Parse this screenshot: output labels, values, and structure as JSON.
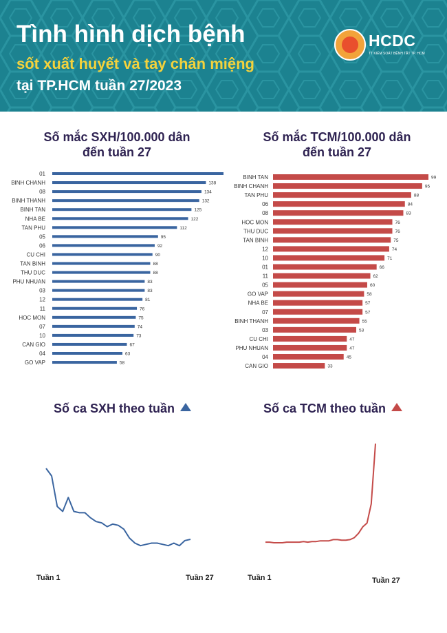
{
  "header": {
    "line1": "Tình hình dịch bệnh",
    "line2": "sốt xuất huyết và tay chân miệng",
    "line3": "tại TP.HCM tuần 27/2023",
    "logo_name": "HCDC",
    "logo_sub": "TT KIỂM SOÁT BỆNH TẬT TP. HCM"
  },
  "colors": {
    "header_bg": "#1c8290",
    "title_yellow": "#f4d23c",
    "sxh": "#3a65a0",
    "tcm": "#c44a48",
    "title_text": "#2f2352"
  },
  "chart_data": [
    {
      "type": "bar",
      "orientation": "horizontal",
      "title_line1": "Số mắc SXH/100.000 dân",
      "title_line2": "đến tuần 27",
      "categories": [
        "01",
        "BINH CHANH",
        "08",
        "BINH THANH",
        "BINH TAN",
        "NHA BE",
        "TAN PHU",
        "05",
        "06",
        "CU CHI",
        "TAN BINH",
        "THU DUC",
        "PHU NHUAN",
        "03",
        "12",
        "11",
        "HOC MON",
        "07",
        "10",
        "CAN GIO",
        "04",
        "GO VAP"
      ],
      "values": [
        168,
        138,
        134,
        132,
        125,
        122,
        112,
        95,
        92,
        90,
        88,
        88,
        83,
        83,
        81,
        76,
        75,
        74,
        73,
        67,
        63,
        58
      ],
      "xlim": [
        0,
        168
      ]
    },
    {
      "type": "bar",
      "orientation": "horizontal",
      "title_line1": "Số mắc TCM/100.000 dân",
      "title_line2": "đến tuần 27",
      "categories": [
        "BINH TAN",
        "BINH CHANH",
        "TAN PHU",
        "06",
        "08",
        "HOC MON",
        "THU DUC",
        "TAN BINH",
        "12",
        "10",
        "01",
        "11",
        "05",
        "GO VAP",
        "NHA BE",
        "07",
        "BINH THANH",
        "03",
        "CU CHI",
        "PHU NHUAN",
        "04",
        "CAN GIO"
      ],
      "values": [
        99,
        95,
        88,
        84,
        83,
        76,
        76,
        75,
        74,
        71,
        66,
        62,
        60,
        58,
        57,
        57,
        55,
        53,
        47,
        47,
        45,
        33
      ],
      "xlim": [
        0,
        99
      ]
    },
    {
      "type": "line",
      "title": "Số ca SXH theo tuần",
      "x_start_label": "Tuần 1",
      "x_end_label": "Tuần 27",
      "x": [
        1,
        2,
        3,
        4,
        5,
        6,
        7,
        8,
        9,
        10,
        11,
        12,
        13,
        14,
        15,
        16,
        17,
        18,
        19,
        20,
        21,
        22,
        23,
        24,
        25,
        26,
        27
      ],
      "values": [
        112,
        106,
        82,
        78,
        89,
        78,
        77,
        77,
        73,
        70,
        69,
        66,
        68,
        67,
        64,
        57,
        53,
        51,
        52,
        53,
        53,
        52,
        51,
        53,
        51,
        55,
        56
      ]
    },
    {
      "type": "line",
      "title": "Số ca TCM theo tuần",
      "x_start_label": "Tuần 1",
      "x_end_label": "Tuần 27",
      "x": [
        1,
        2,
        3,
        4,
        5,
        6,
        7,
        8,
        9,
        10,
        11,
        12,
        13,
        14,
        15,
        16,
        17,
        18,
        19,
        20,
        21,
        22,
        23,
        24,
        25,
        26,
        27
      ],
      "values": [
        10,
        10,
        9,
        9,
        9,
        10,
        10,
        10,
        10,
        11,
        10,
        11,
        11,
        12,
        12,
        12,
        14,
        14,
        13,
        13,
        14,
        17,
        24,
        34,
        40,
        70,
        165
      ]
    }
  ]
}
